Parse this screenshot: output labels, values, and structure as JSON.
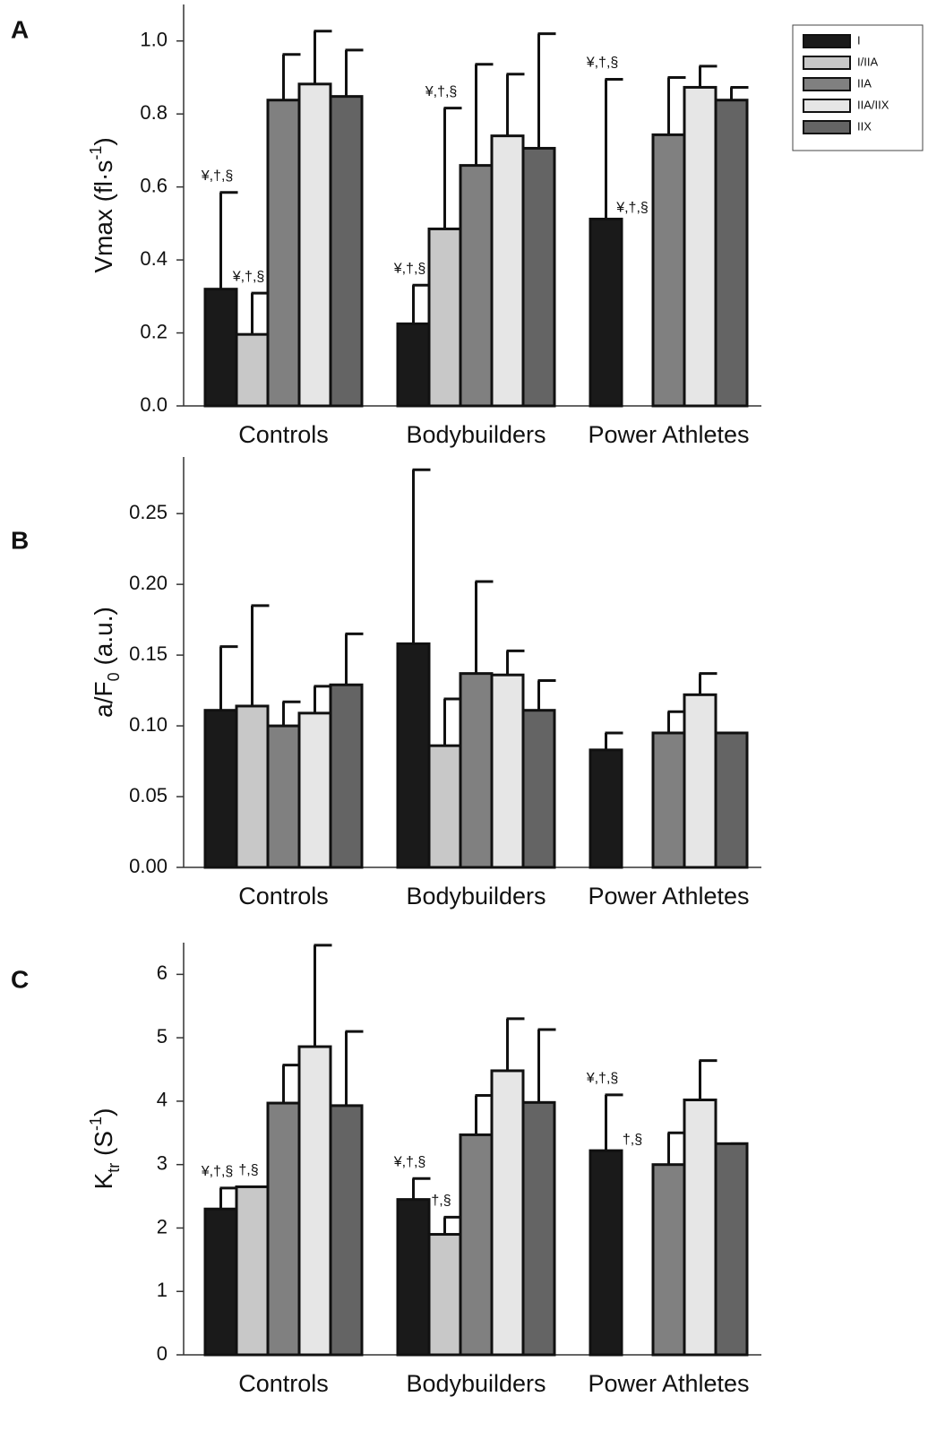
{
  "chart_data": [
    {
      "type": "bar",
      "panel": "A",
      "ylabel": [
        {
          "text": "Vmax (fl·s"
        },
        {
          "text": "-1",
          "shift": "super"
        },
        {
          "text": ")"
        }
      ],
      "categories": [
        "Controls",
        "Bodybuilders",
        "Power Athletes"
      ],
      "ylim": [
        0,
        1.1
      ],
      "yticks": [
        {
          "value": 0,
          "label": "0.0"
        },
        {
          "value": 0.2,
          "label": "0.2"
        },
        {
          "value": 0.4,
          "label": "0.4"
        },
        {
          "value": 0.6,
          "label": "0.6"
        },
        {
          "value": 0.8,
          "label": "0.8"
        },
        {
          "value": 1,
          "label": "1.0"
        }
      ],
      "legend": "upper right",
      "series": [
        {
          "name": "I",
          "color": "#1a1a1a",
          "values": [
            0.32,
            0.225,
            0.512
          ],
          "errors": [
            0.265,
            0.106,
            0.383
          ],
          "annotations": [
            "¥,†,§",
            "¥,†,§",
            "¥,†,§"
          ]
        },
        {
          "name": "I/IIA",
          "color": "#c8c8c8",
          "values": [
            0.196,
            0.485,
            null
          ],
          "errors": [
            0.113,
            0.331,
            null
          ],
          "annotations": [
            "¥,†,§",
            "¥,†,§",
            "¥,†,§"
          ]
        },
        {
          "name": "IIA",
          "color": "#808080",
          "values": [
            0.838,
            0.659,
            0.743
          ],
          "errors": [
            0.125,
            0.277,
            0.157
          ],
          "annotations": [
            null,
            null,
            null
          ]
        },
        {
          "name": "IIA/IIX",
          "color": "#e6e6e6",
          "values": [
            0.882,
            0.74,
            0.873
          ],
          "errors": [
            0.145,
            0.169,
            0.058
          ],
          "annotations": [
            null,
            null,
            null
          ]
        },
        {
          "name": "IIX",
          "color": "#646464",
          "values": [
            0.848,
            0.706,
            0.838
          ],
          "errors": [
            0.127,
            0.314,
            0.035
          ],
          "annotations": [
            null,
            null,
            null
          ]
        }
      ]
    },
    {
      "type": "bar",
      "panel": "B",
      "ylabel": [
        {
          "text": "a/F"
        },
        {
          "text": "0",
          "shift": "sub"
        },
        {
          "text": " (a.u.)"
        }
      ],
      "categories": [
        "Controls",
        "Bodybuilders",
        "Power Athletes"
      ],
      "ylim": [
        0,
        0.29
      ],
      "yticks": [
        {
          "value": 0,
          "label": "0.00"
        },
        {
          "value": 0.05,
          "label": "0.05"
        },
        {
          "value": 0.1,
          "label": "0.10"
        },
        {
          "value": 0.15,
          "label": "0.15"
        },
        {
          "value": 0.2,
          "label": "0.20"
        },
        {
          "value": 0.25,
          "label": "0.25"
        }
      ],
      "series": [
        {
          "color": "#1a1a1a",
          "values": [
            0.111,
            0.158,
            0.083
          ],
          "errors": [
            0.045,
            0.123,
            0.012
          ],
          "annotations": [
            null,
            null,
            null
          ]
        },
        {
          "color": "#c8c8c8",
          "values": [
            0.114,
            0.086,
            null
          ],
          "errors": [
            0.071,
            0.033,
            null
          ],
          "annotations": [
            null,
            null,
            null
          ]
        },
        {
          "color": "#808080",
          "values": [
            0.1,
            0.137,
            0.095
          ],
          "errors": [
            0.017,
            0.065,
            0.015
          ],
          "annotations": [
            null,
            null,
            null
          ]
        },
        {
          "color": "#e6e6e6",
          "values": [
            0.109,
            0.136,
            0.122
          ],
          "errors": [
            0.019,
            0.017,
            0.015
          ],
          "annotations": [
            null,
            null,
            null
          ]
        },
        {
          "color": "#646464",
          "values": [
            0.129,
            0.111,
            0.095
          ],
          "errors": [
            0.036,
            0.021,
            0
          ],
          "annotations": [
            null,
            null,
            null
          ]
        }
      ]
    },
    {
      "type": "bar",
      "panel": "C",
      "ylabel": [
        {
          "text": "K"
        },
        {
          "text": "tr",
          "shift": "sub"
        },
        {
          "text": " (S"
        },
        {
          "text": "-1",
          "shift": "super"
        },
        {
          "text": ")"
        }
      ],
      "categories": [
        "Controls",
        "Bodybuilders",
        "Power Athletes"
      ],
      "ylim": [
        0,
        6.5
      ],
      "yticks": [
        0,
        1,
        2,
        3,
        4,
        5,
        6
      ],
      "series": [
        {
          "color": "#1a1a1a",
          "values": [
            2.3,
            2.45,
            3.22
          ],
          "errors": [
            0.33,
            0.33,
            0.88
          ],
          "annotations": [
            "¥,†,§",
            "¥,†,§",
            "¥,†,§"
          ]
        },
        {
          "color": "#c8c8c8",
          "values": [
            2.65,
            1.9,
            null
          ],
          "errors": [
            0,
            0.27,
            null
          ],
          "annotations": [
            "†,§",
            "†,§",
            "†,§"
          ]
        },
        {
          "color": "#808080",
          "values": [
            3.97,
            3.47,
            3.0
          ],
          "errors": [
            0.6,
            0.62,
            0.5
          ],
          "annotations": [
            null,
            null,
            null
          ]
        },
        {
          "color": "#e6e6e6",
          "values": [
            4.86,
            4.48,
            4.02
          ],
          "errors": [
            1.6,
            0.82,
            0.62
          ],
          "annotations": [
            null,
            null,
            null
          ]
        },
        {
          "color": "#646464",
          "values": [
            3.93,
            3.98,
            3.33
          ],
          "errors": [
            1.17,
            1.15,
            0
          ],
          "annotations": [
            null,
            null,
            null
          ]
        }
      ]
    }
  ]
}
